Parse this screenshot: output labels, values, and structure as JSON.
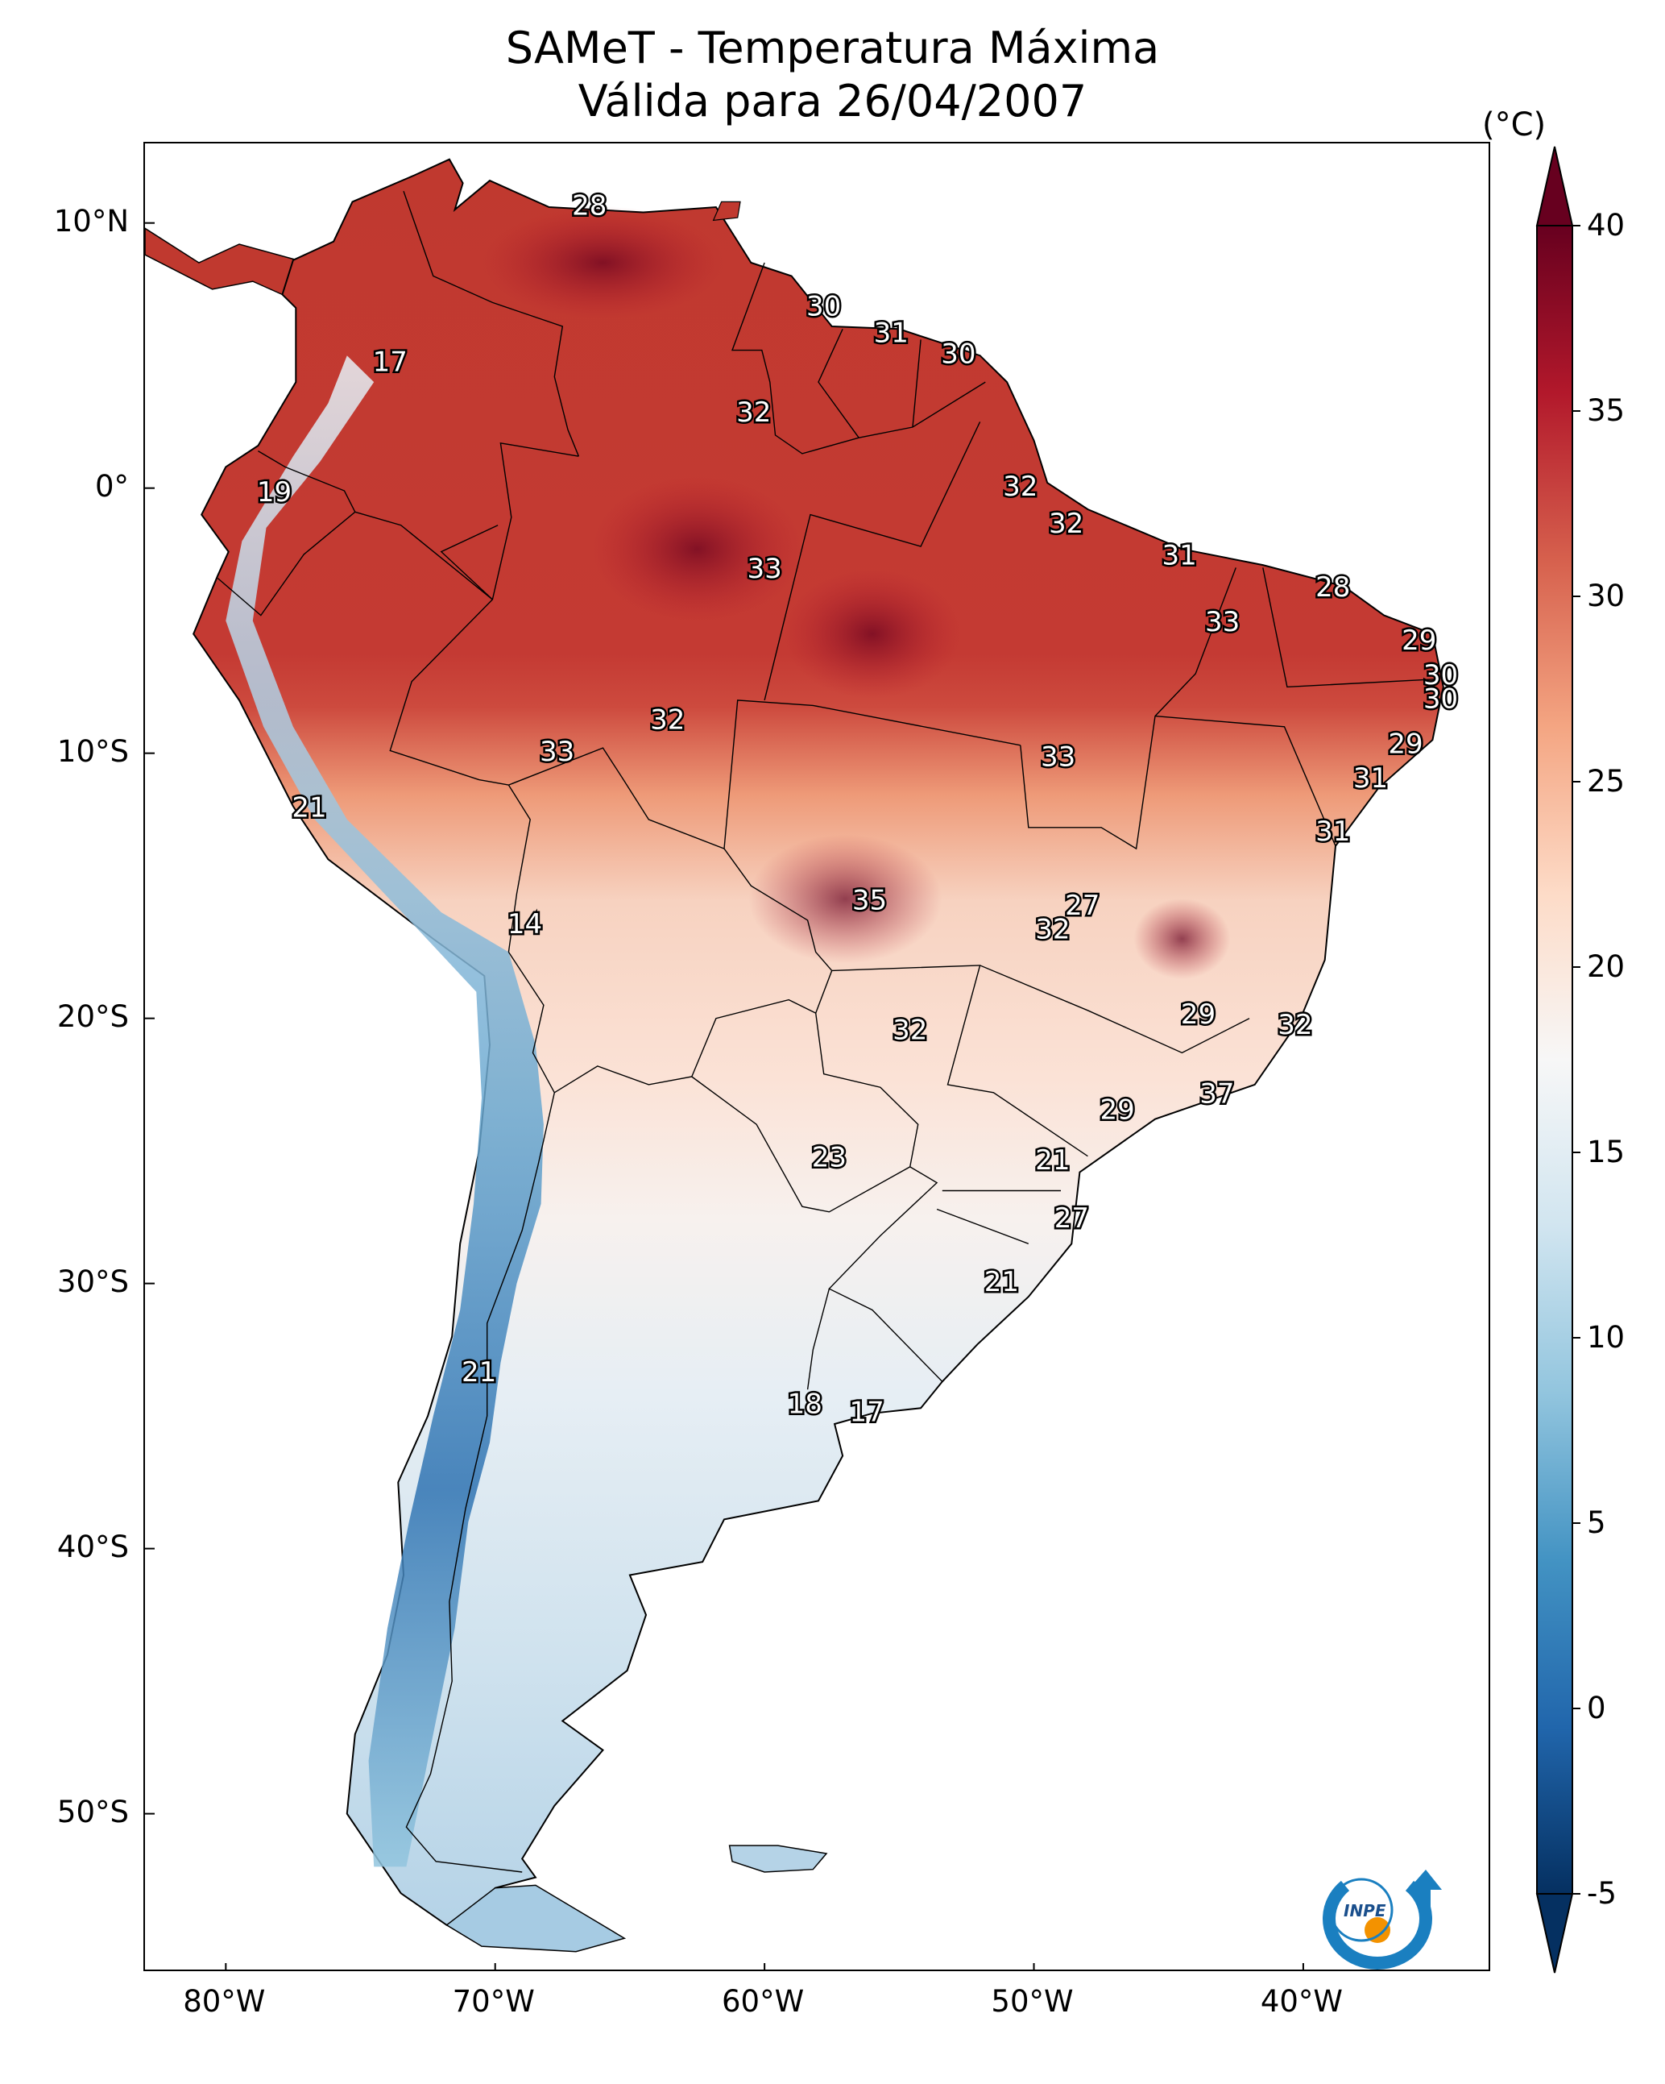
{
  "title": {
    "line1": "SAMeT - Temperatura Máxima",
    "line2": "Válida para 26/04/2007"
  },
  "map": {
    "lat_ticks": [
      "10°N",
      "0°",
      "10°S",
      "20°S",
      "30°S",
      "40°S",
      "50°S"
    ],
    "lon_ticks": [
      "80°W",
      "70°W",
      "60°W",
      "50°W",
      "40°W"
    ],
    "lon_range": [
      -83,
      -33
    ],
    "lat_range": [
      -56,
      13
    ],
    "station_values": [
      {
        "text": "28",
        "lon": -66.5,
        "lat": 10.6
      },
      {
        "text": "30",
        "lon": -57.8,
        "lat": 6.8
      },
      {
        "text": "31",
        "lon": -55.3,
        "lat": 5.8
      },
      {
        "text": "30",
        "lon": -52.8,
        "lat": 5.0
      },
      {
        "text": "17",
        "lon": -73.9,
        "lat": 4.7
      },
      {
        "text": "32",
        "lon": -60.4,
        "lat": 2.8
      },
      {
        "text": "19",
        "lon": -78.2,
        "lat": -0.2
      },
      {
        "text": "32",
        "lon": -50.5,
        "lat": 0.0
      },
      {
        "text": "32",
        "lon": -48.8,
        "lat": -1.4
      },
      {
        "text": "31",
        "lon": -44.6,
        "lat": -2.6
      },
      {
        "text": "33",
        "lon": -60.0,
        "lat": -3.1
      },
      {
        "text": "28",
        "lon": -38.9,
        "lat": -3.8
      },
      {
        "text": "33",
        "lon": -43.0,
        "lat": -5.1
      },
      {
        "text": "29",
        "lon": -35.7,
        "lat": -5.8
      },
      {
        "text": "30",
        "lon": -34.9,
        "lat": -7.1
      },
      {
        "text": "30",
        "lon": -34.9,
        "lat": -8.0
      },
      {
        "text": "32",
        "lon": -63.6,
        "lat": -8.8
      },
      {
        "text": "29",
        "lon": -36.2,
        "lat": -9.7
      },
      {
        "text": "33",
        "lon": -67.7,
        "lat": -10.0
      },
      {
        "text": "33",
        "lon": -49.1,
        "lat": -10.2
      },
      {
        "text": "31",
        "lon": -37.5,
        "lat": -11.0
      },
      {
        "text": "21",
        "lon": -76.9,
        "lat": -12.1
      },
      {
        "text": "31",
        "lon": -38.9,
        "lat": -13.0
      },
      {
        "text": "14",
        "lon": -68.9,
        "lat": -16.5
      },
      {
        "text": "35",
        "lon": -56.1,
        "lat": -15.6
      },
      {
        "text": "27",
        "lon": -48.2,
        "lat": -15.8
      },
      {
        "text": "32",
        "lon": -49.3,
        "lat": -16.7
      },
      {
        "text": "29",
        "lon": -43.9,
        "lat": -19.9
      },
      {
        "text": "32",
        "lon": -40.3,
        "lat": -20.3
      },
      {
        "text": "32",
        "lon": -54.6,
        "lat": -20.5
      },
      {
        "text": "37",
        "lon": -43.2,
        "lat": -22.9
      },
      {
        "text": "29",
        "lon": -46.9,
        "lat": -23.5
      },
      {
        "text": "23",
        "lon": -57.6,
        "lat": -25.3
      },
      {
        "text": "21",
        "lon": -49.3,
        "lat": -25.4
      },
      {
        "text": "27",
        "lon": -48.6,
        "lat": -27.6
      },
      {
        "text": "21",
        "lon": -51.2,
        "lat": -30.0
      },
      {
        "text": "21",
        "lon": -70.6,
        "lat": -33.4
      },
      {
        "text": "18",
        "lon": -58.5,
        "lat": -34.6
      },
      {
        "text": "17",
        "lon": -56.2,
        "lat": -34.9
      }
    ]
  },
  "colorbar": {
    "unit": "(°C)",
    "tick_labels": [
      "40",
      "35",
      "30",
      "25",
      "20",
      "15",
      "10",
      "5",
      "0",
      "-5"
    ],
    "range": [
      -5,
      40
    ],
    "extend": "both",
    "colors": [
      "#053061",
      "#2166ac",
      "#4393c3",
      "#92c5de",
      "#d1e5f0",
      "#f7f7f7",
      "#fddbc7",
      "#f4a582",
      "#d6604d",
      "#b2182b",
      "#67001f"
    ]
  },
  "logo": {
    "text": "INPE"
  }
}
